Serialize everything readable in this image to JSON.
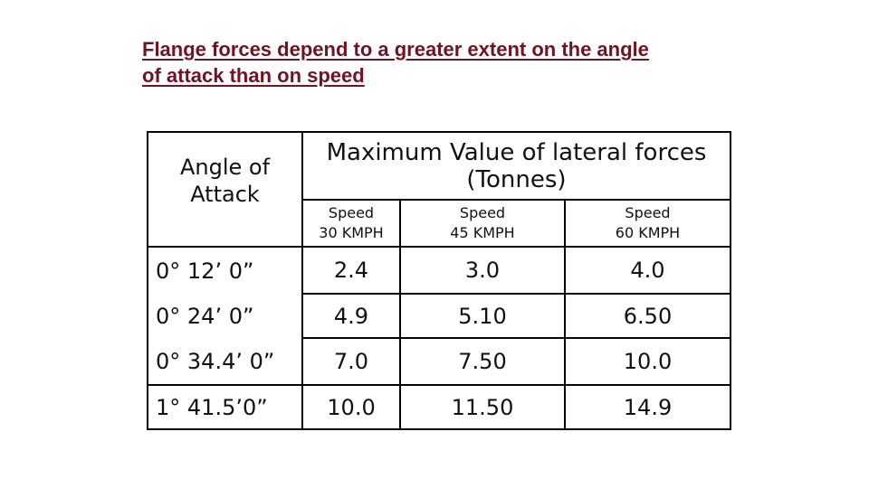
{
  "title": {
    "line1": "Flange forces depend to a greater extent on the angle",
    "line2": "of attack  than on speed"
  },
  "table": {
    "angle_header": [
      "Angle of",
      "Attack"
    ],
    "max_header": [
      "Maximum Value of lateral forces",
      "(Tonnes)"
    ],
    "speeds": [
      {
        "label": "Speed",
        "value": "30 KMPH"
      },
      {
        "label": "Speed",
        "value": "45 KMPH"
      },
      {
        "label": "Speed",
        "value": "60 KMPH"
      }
    ],
    "rows": [
      {
        "angle": "0° 12’  0”",
        "values": [
          "2.4",
          "3.0",
          "4.0"
        ]
      },
      {
        "angle": "0° 24’  0”",
        "values": [
          "4.9",
          "5.10",
          "6.50"
        ]
      },
      {
        "angle": "0° 34.4’ 0”",
        "values": [
          "7.0",
          "7.50",
          "10.0"
        ]
      },
      {
        "angle": "1° 41.5’0”",
        "values": [
          "10.0",
          "11.50",
          "14.9"
        ]
      }
    ]
  }
}
